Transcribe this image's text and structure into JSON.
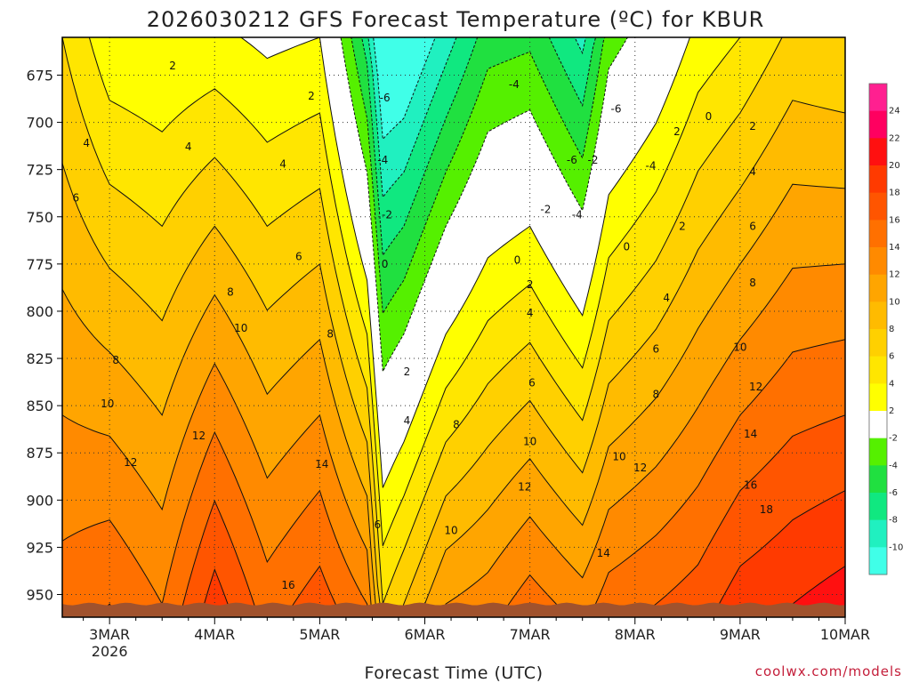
{
  "chart_data": {
    "type": "heatmap",
    "title": "2026030212 GFS Forecast Temperature (ºC) for KBUR",
    "xlabel": "Forecast Time (UTC)",
    "ylabel": "",
    "credit": "coolwx.com/models",
    "y_range": [
      962,
      655
    ],
    "y_ticks": [
      675,
      700,
      725,
      750,
      775,
      800,
      825,
      850,
      875,
      900,
      925,
      950
    ],
    "x_range_days": [
      2.55,
      10.0
    ],
    "x_ticks": [
      {
        "day": 3,
        "label": "3MAR",
        "sublabel": "2026"
      },
      {
        "day": 4,
        "label": "4MAR"
      },
      {
        "day": 5,
        "label": "5MAR"
      },
      {
        "day": 6,
        "label": "6MAR"
      },
      {
        "day": 7,
        "label": "7MAR"
      },
      {
        "day": 8,
        "label": "8MAR"
      },
      {
        "day": 9,
        "label": "9MAR"
      },
      {
        "day": 10,
        "label": "10MAR"
      }
    ],
    "legend": {
      "labels": [
        "24",
        "22",
        "20",
        "18",
        "16",
        "14",
        "12",
        "10",
        "8",
        "6",
        "4",
        "2",
        "-2",
        "-4",
        "-6",
        "-8",
        "-10"
      ],
      "colors": [
        "#ff2090",
        "#ff0060",
        "#ff1010",
        "#ff3a00",
        "#ff5500",
        "#ff7000",
        "#ff8a00",
        "#ffa500",
        "#ffbb00",
        "#ffd000",
        "#ffe600",
        "#ffff00",
        "#ffffff",
        "#55f000",
        "#20e040",
        "#10e880",
        "#20f0c0",
        "#40ffe8"
      ]
    },
    "surface_level_hpa": 955,
    "columns": [
      {
        "day": 2.55,
        "sfc": 15,
        "lapse": 0.03
      },
      {
        "day": 3.0,
        "sfc": 16,
        "lapse": 0.045
      },
      {
        "day": 3.5,
        "sfc": 14,
        "lapse": 0.04
      },
      {
        "day": 4.0,
        "sfc": 19,
        "lapse": 0.055
      },
      {
        "day": 4.5,
        "sfc": 15,
        "lapse": 0.045
      },
      {
        "day": 5.0,
        "sfc": 17,
        "lapse": 0.05
      },
      {
        "day": 5.45,
        "sfc": 14,
        "lapse": 0.07
      },
      {
        "day": 5.6,
        "sfc": 6,
        "lapse": 0.065
      },
      {
        "day": 5.8,
        "sfc": 8,
        "lapse": 0.07
      },
      {
        "day": 6.2,
        "sfc": 12,
        "lapse": 0.07
      },
      {
        "day": 6.6,
        "sfc": 13,
        "lapse": 0.06
      },
      {
        "day": 7.0,
        "sfc": 15,
        "lapse": 0.065
      },
      {
        "day": 7.5,
        "sfc": 13,
        "lapse": 0.072
      },
      {
        "day": 7.75,
        "sfc": 15,
        "lapse": 0.06
      },
      {
        "day": 8.2,
        "sfc": 16,
        "lapse": 0.055
      },
      {
        "day": 8.6,
        "sfc": 17,
        "lapse": 0.048
      },
      {
        "day": 9.0,
        "sfc": 19,
        "lapse": 0.05
      },
      {
        "day": 9.5,
        "sfc": 20,
        "lapse": 0.045
      },
      {
        "day": 10.0,
        "sfc": 21,
        "lapse": 0.05
      }
    ],
    "contour_labels": [
      {
        "day": 3.6,
        "p": 670,
        "text": "2"
      },
      {
        "day": 2.78,
        "p": 711,
        "text": "4"
      },
      {
        "day": 2.68,
        "p": 740,
        "text": "6"
      },
      {
        "day": 3.06,
        "p": 826,
        "text": "8"
      },
      {
        "day": 2.98,
        "p": 849,
        "text": "10"
      },
      {
        "day": 3.2,
        "p": 880,
        "text": "12"
      },
      {
        "day": 3.75,
        "p": 713,
        "text": "4"
      },
      {
        "day": 3.85,
        "p": 866,
        "text": "12"
      },
      {
        "day": 4.15,
        "p": 790,
        "text": "8"
      },
      {
        "day": 4.25,
        "p": 809,
        "text": "10"
      },
      {
        "day": 4.65,
        "p": 722,
        "text": "4"
      },
      {
        "day": 4.8,
        "p": 771,
        "text": "6"
      },
      {
        "day": 4.92,
        "p": 686,
        "text": "2"
      },
      {
        "day": 5.1,
        "p": 812,
        "text": "8"
      },
      {
        "day": 5.02,
        "p": 881,
        "text": "14"
      },
      {
        "day": 4.7,
        "p": 945,
        "text": "16"
      },
      {
        "day": 5.62,
        "p": 687,
        "text": "-6"
      },
      {
        "day": 5.6,
        "p": 720,
        "text": "-4"
      },
      {
        "day": 5.64,
        "p": 749,
        "text": "-2"
      },
      {
        "day": 5.62,
        "p": 775,
        "text": "0"
      },
      {
        "day": 5.83,
        "p": 832,
        "text": "2"
      },
      {
        "day": 5.83,
        "p": 858,
        "text": "4"
      },
      {
        "day": 5.55,
        "p": 913,
        "text": "6"
      },
      {
        "day": 6.3,
        "p": 860,
        "text": "8"
      },
      {
        "day": 6.25,
        "p": 916,
        "text": "10"
      },
      {
        "day": 6.85,
        "p": 680,
        "text": "-4"
      },
      {
        "day": 7.0,
        "p": 869,
        "text": "10"
      },
      {
        "day": 6.95,
        "p": 893,
        "text": "12"
      },
      {
        "day": 7.02,
        "p": 838,
        "text": "6"
      },
      {
        "day": 7.0,
        "p": 801,
        "text": "4"
      },
      {
        "day": 7.0,
        "p": 786,
        "text": "2"
      },
      {
        "day": 6.88,
        "p": 773,
        "text": "0"
      },
      {
        "day": 7.15,
        "p": 746,
        "text": "-2"
      },
      {
        "day": 7.45,
        "p": 749,
        "text": "-4"
      },
      {
        "day": 7.4,
        "p": 720,
        "text": "-6"
      },
      {
        "day": 7.6,
        "p": 720,
        "text": "-2"
      },
      {
        "day": 7.82,
        "p": 693,
        "text": "-6"
      },
      {
        "day": 8.15,
        "p": 723,
        "text": "-4"
      },
      {
        "day": 7.92,
        "p": 766,
        "text": "0"
      },
      {
        "day": 8.4,
        "p": 705,
        "text": "2"
      },
      {
        "day": 8.7,
        "p": 697,
        "text": "0"
      },
      {
        "day": 8.45,
        "p": 755,
        "text": "2"
      },
      {
        "day": 8.3,
        "p": 793,
        "text": "4"
      },
      {
        "day": 8.2,
        "p": 820,
        "text": "6"
      },
      {
        "day": 8.2,
        "p": 844,
        "text": "8"
      },
      {
        "day": 7.85,
        "p": 877,
        "text": "10"
      },
      {
        "day": 8.05,
        "p": 883,
        "text": "12"
      },
      {
        "day": 7.7,
        "p": 928,
        "text": "14"
      },
      {
        "day": 9.12,
        "p": 702,
        "text": "2"
      },
      {
        "day": 9.12,
        "p": 726,
        "text": "4"
      },
      {
        "day": 9.12,
        "p": 755,
        "text": "6"
      },
      {
        "day": 9.12,
        "p": 785,
        "text": "8"
      },
      {
        "day": 9.0,
        "p": 819,
        "text": "10"
      },
      {
        "day": 9.15,
        "p": 840,
        "text": "12"
      },
      {
        "day": 9.1,
        "p": 865,
        "text": "14"
      },
      {
        "day": 9.1,
        "p": 892,
        "text": "16"
      },
      {
        "day": 9.25,
        "p": 905,
        "text": "18"
      }
    ]
  }
}
